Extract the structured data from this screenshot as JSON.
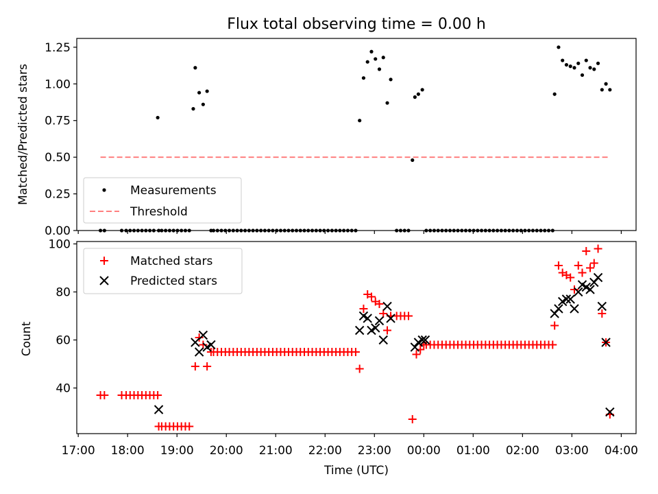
{
  "chart_data": [
    {
      "type": "scatter",
      "panel": "top",
      "title": "Flux total observing time = 0.00 h",
      "xlabel": "",
      "ylabel": "Matched/Predicted stars",
      "xlim_hours": [
        16.97,
        28.3
      ],
      "ylim": [
        0,
        1.31
      ],
      "yticks": [
        0.0,
        0.25,
        0.5,
        0.75,
        1.0,
        1.25
      ],
      "ytick_labels": [
        "0.00",
        "0.25",
        "0.50",
        "0.75",
        "1.00",
        "1.25"
      ],
      "grid": false,
      "legend": {
        "position": "bottom-left",
        "entries": [
          "Measurements",
          "Threshold"
        ]
      },
      "series": [
        {
          "name": "Measurements",
          "marker": "dot",
          "color": "#000000",
          "x_hours": [
            17.45,
            17.53,
            17.88,
            17.97,
            18.05,
            18.13,
            18.21,
            18.29,
            18.37,
            18.45,
            18.53,
            18.61,
            18.63,
            18.69,
            18.77,
            18.85,
            18.93,
            19.01,
            19.09,
            19.17,
            19.25,
            19.33,
            19.37,
            19.45,
            19.53,
            19.61,
            19.69,
            19.74,
            19.82,
            19.9,
            19.98,
            20.06,
            20.14,
            20.22,
            20.3,
            20.38,
            20.46,
            20.54,
            20.62,
            20.7,
            20.78,
            20.86,
            20.94,
            21.02,
            21.1,
            21.18,
            21.26,
            21.34,
            21.42,
            21.5,
            21.58,
            21.66,
            21.74,
            21.82,
            21.9,
            21.98,
            22.06,
            22.14,
            22.22,
            22.3,
            22.38,
            22.46,
            22.54,
            22.62,
            22.7,
            22.78,
            22.86,
            22.94,
            23.02,
            23.1,
            23.18,
            23.26,
            23.33,
            23.45,
            23.53,
            23.61,
            23.69,
            23.77,
            23.82,
            23.89,
            23.97,
            24.05,
            24.13,
            24.21,
            24.29,
            24.37,
            24.45,
            24.53,
            24.61,
            24.69,
            24.77,
            24.85,
            24.93,
            25.01,
            25.09,
            25.17,
            25.25,
            25.33,
            25.41,
            25.49,
            25.57,
            25.65,
            25.73,
            25.81,
            25.89,
            25.97,
            26.05,
            26.13,
            26.21,
            26.29,
            26.37,
            26.45,
            26.53,
            26.61,
            26.65,
            26.73,
            26.81,
            26.89,
            26.97,
            27.05,
            27.13,
            27.21,
            27.29,
            27.37,
            27.45,
            27.53,
            27.61,
            27.69,
            27.77
          ],
          "y": [
            0,
            0,
            0,
            0,
            0,
            0,
            0,
            0,
            0,
            0,
            0,
            0.77,
            0,
            0,
            0,
            0,
            0,
            0,
            0,
            0,
            0,
            0.83,
            1.11,
            0.94,
            0.86,
            0.95,
            0,
            0,
            0,
            0,
            0,
            0,
            0,
            0,
            0,
            0,
            0,
            0,
            0,
            0,
            0,
            0,
            0,
            0,
            0,
            0,
            0,
            0,
            0,
            0,
            0,
            0,
            0,
            0,
            0,
            0,
            0,
            0,
            0,
            0,
            0,
            0,
            0,
            0,
            0.75,
            1.04,
            1.15,
            1.22,
            1.17,
            1.1,
            1.18,
            0.87,
            1.03,
            0,
            0,
            0,
            0,
            0.48,
            0.91,
            0.93,
            0.96,
            0,
            0,
            0,
            0,
            0,
            0,
            0,
            0,
            0,
            0,
            0,
            0,
            0,
            0,
            0,
            0,
            0,
            0,
            0,
            0,
            0,
            0,
            0,
            0,
            0,
            0,
            0,
            0,
            0,
            0,
            0,
            0,
            0,
            0.93,
            1.25,
            1.16,
            1.13,
            1.12,
            1.11,
            1.14,
            1.06,
            1.16,
            1.11,
            1.1,
            1.14,
            0.96,
            1.0,
            0.96
          ]
        },
        {
          "name": "Threshold",
          "style": "dashed",
          "color": "#ff7f7f",
          "x_hours": [
            17.45,
            27.77
          ],
          "y": [
            0.5,
            0.5
          ]
        }
      ]
    },
    {
      "type": "scatter",
      "panel": "bottom",
      "title": "",
      "xlabel": "Time (UTC)",
      "ylabel": "Count",
      "xlim_hours": [
        16.97,
        28.3
      ],
      "ylim": [
        21,
        101
      ],
      "yticks": [
        40,
        60,
        80,
        100
      ],
      "ytick_labels": [
        "40",
        "60",
        "80",
        "100"
      ],
      "xticks_hours": [
        17,
        18,
        19,
        20,
        21,
        22,
        23,
        24,
        25,
        26,
        27,
        28
      ],
      "xtick_labels": [
        "17:00",
        "18:00",
        "19:00",
        "20:00",
        "21:00",
        "22:00",
        "23:00",
        "00:00",
        "01:00",
        "02:00",
        "03:00",
        "04:00"
      ],
      "grid": false,
      "legend": {
        "position": "top-left",
        "entries": [
          "Matched stars",
          "Predicted stars"
        ]
      },
      "series": [
        {
          "name": "Matched stars",
          "marker": "plus",
          "color": "#ff0000",
          "points": [
            [
              17.45,
              37
            ],
            [
              17.53,
              37
            ],
            [
              17.88,
              37
            ],
            [
              17.97,
              37
            ],
            [
              18.05,
              37
            ],
            [
              18.13,
              37
            ],
            [
              18.21,
              37
            ],
            [
              18.29,
              37
            ],
            [
              18.37,
              37
            ],
            [
              18.45,
              37
            ],
            [
              18.53,
              37
            ],
            [
              18.61,
              37
            ],
            [
              18.63,
              24
            ],
            [
              18.69,
              24
            ],
            [
              18.77,
              24
            ],
            [
              18.85,
              24
            ],
            [
              18.93,
              24
            ],
            [
              19.01,
              24
            ],
            [
              19.09,
              24
            ],
            [
              19.17,
              24
            ],
            [
              19.25,
              24
            ],
            [
              19.37,
              49
            ],
            [
              19.45,
              61
            ],
            [
              19.53,
              58
            ],
            [
              19.61,
              49
            ],
            [
              19.69,
              55
            ],
            [
              19.74,
              55
            ],
            [
              19.82,
              55
            ],
            [
              19.9,
              55
            ],
            [
              19.98,
              55
            ],
            [
              20.06,
              55
            ],
            [
              20.14,
              55
            ],
            [
              20.22,
              55
            ],
            [
              20.3,
              55
            ],
            [
              20.38,
              55
            ],
            [
              20.46,
              55
            ],
            [
              20.54,
              55
            ],
            [
              20.62,
              55
            ],
            [
              20.7,
              55
            ],
            [
              20.78,
              55
            ],
            [
              20.86,
              55
            ],
            [
              20.94,
              55
            ],
            [
              21.02,
              55
            ],
            [
              21.1,
              55
            ],
            [
              21.18,
              55
            ],
            [
              21.26,
              55
            ],
            [
              21.34,
              55
            ],
            [
              21.42,
              55
            ],
            [
              21.5,
              55
            ],
            [
              21.58,
              55
            ],
            [
              21.66,
              55
            ],
            [
              21.74,
              55
            ],
            [
              21.82,
              55
            ],
            [
              21.9,
              55
            ],
            [
              21.98,
              55
            ],
            [
              22.06,
              55
            ],
            [
              22.14,
              55
            ],
            [
              22.22,
              55
            ],
            [
              22.3,
              55
            ],
            [
              22.38,
              55
            ],
            [
              22.46,
              55
            ],
            [
              22.54,
              55
            ],
            [
              22.62,
              55
            ],
            [
              22.7,
              48
            ],
            [
              22.78,
              73
            ],
            [
              22.86,
              79
            ],
            [
              22.94,
              78
            ],
            [
              23.02,
              76
            ],
            [
              23.1,
              75
            ],
            [
              23.18,
              71
            ],
            [
              23.26,
              64
            ],
            [
              23.33,
              70
            ],
            [
              23.45,
              70
            ],
            [
              23.53,
              70
            ],
            [
              23.61,
              70
            ],
            [
              23.69,
              70
            ],
            [
              23.77,
              27
            ],
            [
              23.85,
              54
            ],
            [
              23.93,
              56
            ],
            [
              24.0,
              58
            ],
            [
              24.05,
              58
            ],
            [
              24.13,
              58
            ],
            [
              24.21,
              58
            ],
            [
              24.29,
              58
            ],
            [
              24.37,
              58
            ],
            [
              24.45,
              58
            ],
            [
              24.53,
              58
            ],
            [
              24.61,
              58
            ],
            [
              24.69,
              58
            ],
            [
              24.77,
              58
            ],
            [
              24.85,
              58
            ],
            [
              24.93,
              58
            ],
            [
              25.01,
              58
            ],
            [
              25.09,
              58
            ],
            [
              25.17,
              58
            ],
            [
              25.25,
              58
            ],
            [
              25.33,
              58
            ],
            [
              25.41,
              58
            ],
            [
              25.49,
              58
            ],
            [
              25.57,
              58
            ],
            [
              25.65,
              58
            ],
            [
              25.73,
              58
            ],
            [
              25.81,
              58
            ],
            [
              25.89,
              58
            ],
            [
              25.97,
              58
            ],
            [
              26.05,
              58
            ],
            [
              26.13,
              58
            ],
            [
              26.21,
              58
            ],
            [
              26.29,
              58
            ],
            [
              26.37,
              58
            ],
            [
              26.45,
              58
            ],
            [
              26.53,
              58
            ],
            [
              26.61,
              58
            ],
            [
              26.65,
              66
            ],
            [
              26.73,
              91
            ],
            [
              26.81,
              88
            ],
            [
              26.89,
              87
            ],
            [
              26.97,
              86
            ],
            [
              27.05,
              81
            ],
            [
              27.13,
              91
            ],
            [
              27.21,
              88
            ],
            [
              27.29,
              97
            ],
            [
              27.37,
              90
            ],
            [
              27.45,
              92
            ],
            [
              27.53,
              98
            ],
            [
              27.61,
              71
            ],
            [
              27.69,
              59
            ],
            [
              27.77,
              29
            ]
          ]
        },
        {
          "name": "Predicted stars",
          "marker": "x",
          "color": "#000000",
          "points": [
            [
              18.63,
              31
            ],
            [
              19.37,
              59
            ],
            [
              19.45,
              55
            ],
            [
              19.53,
              62
            ],
            [
              19.61,
              57
            ],
            [
              19.69,
              58
            ],
            [
              22.7,
              64
            ],
            [
              22.78,
              70
            ],
            [
              22.86,
              69
            ],
            [
              22.94,
              64
            ],
            [
              23.02,
              65
            ],
            [
              23.1,
              68
            ],
            [
              23.18,
              60
            ],
            [
              23.26,
              74
            ],
            [
              23.33,
              69
            ],
            [
              23.82,
              57
            ],
            [
              23.89,
              59
            ],
            [
              23.97,
              60
            ],
            [
              24.03,
              60
            ],
            [
              26.65,
              71
            ],
            [
              26.73,
              73
            ],
            [
              26.81,
              76
            ],
            [
              26.89,
              77
            ],
            [
              26.97,
              77
            ],
            [
              27.05,
              73
            ],
            [
              27.13,
              80
            ],
            [
              27.21,
              83
            ],
            [
              27.29,
              82
            ],
            [
              27.37,
              81
            ],
            [
              27.45,
              84
            ],
            [
              27.53,
              86
            ],
            [
              27.61,
              74
            ],
            [
              27.69,
              59
            ],
            [
              27.77,
              30
            ]
          ]
        }
      ]
    }
  ]
}
